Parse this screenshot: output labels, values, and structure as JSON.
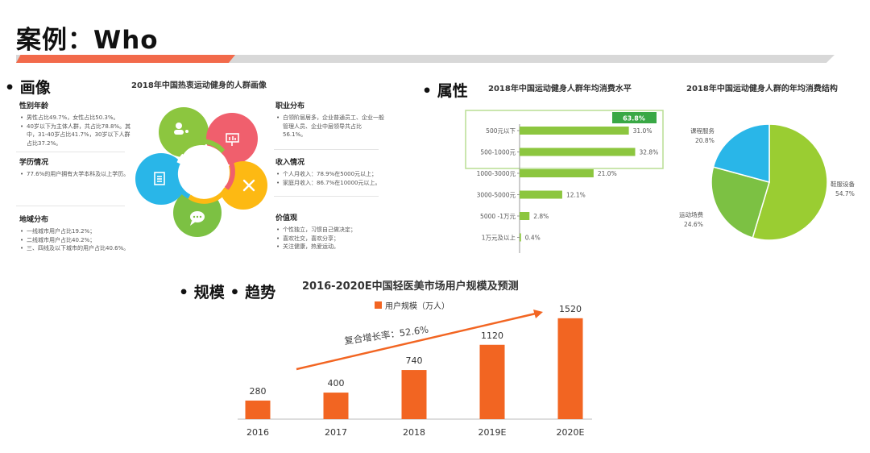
{
  "slide": {
    "title": "案例：Who"
  },
  "colors": {
    "accent_red": "#f26a4b",
    "bar_green": "#8cc63f",
    "bar_orange": "#f26522",
    "pie_green": "#9acd32",
    "pie_cyan": "#29b6e8"
  },
  "portrait": {
    "heading": "• 画像",
    "title": "2018年中国热衷运动健身的人群画像",
    "left_blocks": [
      {
        "title": "性别年龄",
        "items": [
          "男性占比49.7%，女性占比50.3%。",
          "40岁以下为主体人群，共占比78.8%。其中，31-40岁占比41.7%，30岁以下人群占比37.2%。"
        ]
      },
      {
        "title": "学历情况",
        "items": [
          "77.6%的用户拥有大学本科及以上学历。"
        ]
      },
      {
        "title": "地域分布",
        "items": [
          "一线城市用户占比19.2%；",
          "二线城市用户占比40.2%；",
          "三、四线及以下城市的用户占比40.6%。"
        ]
      }
    ],
    "right_blocks": [
      {
        "title": "职业分布",
        "items": [
          "白领阶层居多，企业普通员工、企业一般管理人员、企业中层领导共占比56.1%。"
        ]
      },
      {
        "title": "收入情况",
        "items": [
          "个人月收入：78.9%在5000元以上；",
          "家庭月收入：86.7%在10000元以上。"
        ]
      },
      {
        "title": "价值观",
        "items": [
          "个性独立，习惯自己做决定；",
          "喜欢社交，喜欢分享；",
          "关注健康，热爱运动。"
        ]
      }
    ],
    "wheel_icons": [
      "user-icon",
      "presentation-icon",
      "tools-icon",
      "chat-icon",
      "document-icon"
    ]
  },
  "attributes": {
    "heading": "• 属性"
  },
  "chart_data": [
    {
      "type": "bar",
      "orientation": "horizontal",
      "title": "2018年中国运动健身人群年均消费水平",
      "categories": [
        "500元以下",
        "500-1000元",
        "1000-3000元",
        "3000-5000元",
        "5000 -1万元",
        "1万元及以上"
      ],
      "values": [
        31.0,
        32.8,
        21.0,
        12.1,
        2.8,
        0.4
      ],
      "data_labels": [
        "31.0%",
        "32.8%",
        "21.0%",
        "12.1%",
        "2.8%",
        "0.4%"
      ],
      "highlight": {
        "categories": [
          "500元以下",
          "500-1000元"
        ],
        "total_label": "63.8%"
      },
      "xlim": [
        0,
        40
      ]
    },
    {
      "type": "pie",
      "title": "2018年中国运动健身人群的年均消费结构",
      "labels": [
        "鞋服设备",
        "运动场费",
        "课程服务"
      ],
      "values": [
        54.7,
        24.6,
        20.8
      ],
      "data_labels": [
        "54.7%",
        "24.6%",
        "20.8%"
      ]
    },
    {
      "type": "bar",
      "title": "2016-2020E中国轻医美市场用户规模及预测",
      "categories": [
        "2016",
        "2017",
        "2018",
        "2019E",
        "2020E"
      ],
      "series": [
        {
          "name": "用户规模（万人）",
          "values": [
            280,
            400,
            740,
            1120,
            1520
          ]
        }
      ],
      "ylim": [
        0,
        1700
      ],
      "annotation": "复合增长率：52.6%"
    }
  ],
  "scale": {
    "heading": "• 规模 • 趋势"
  }
}
